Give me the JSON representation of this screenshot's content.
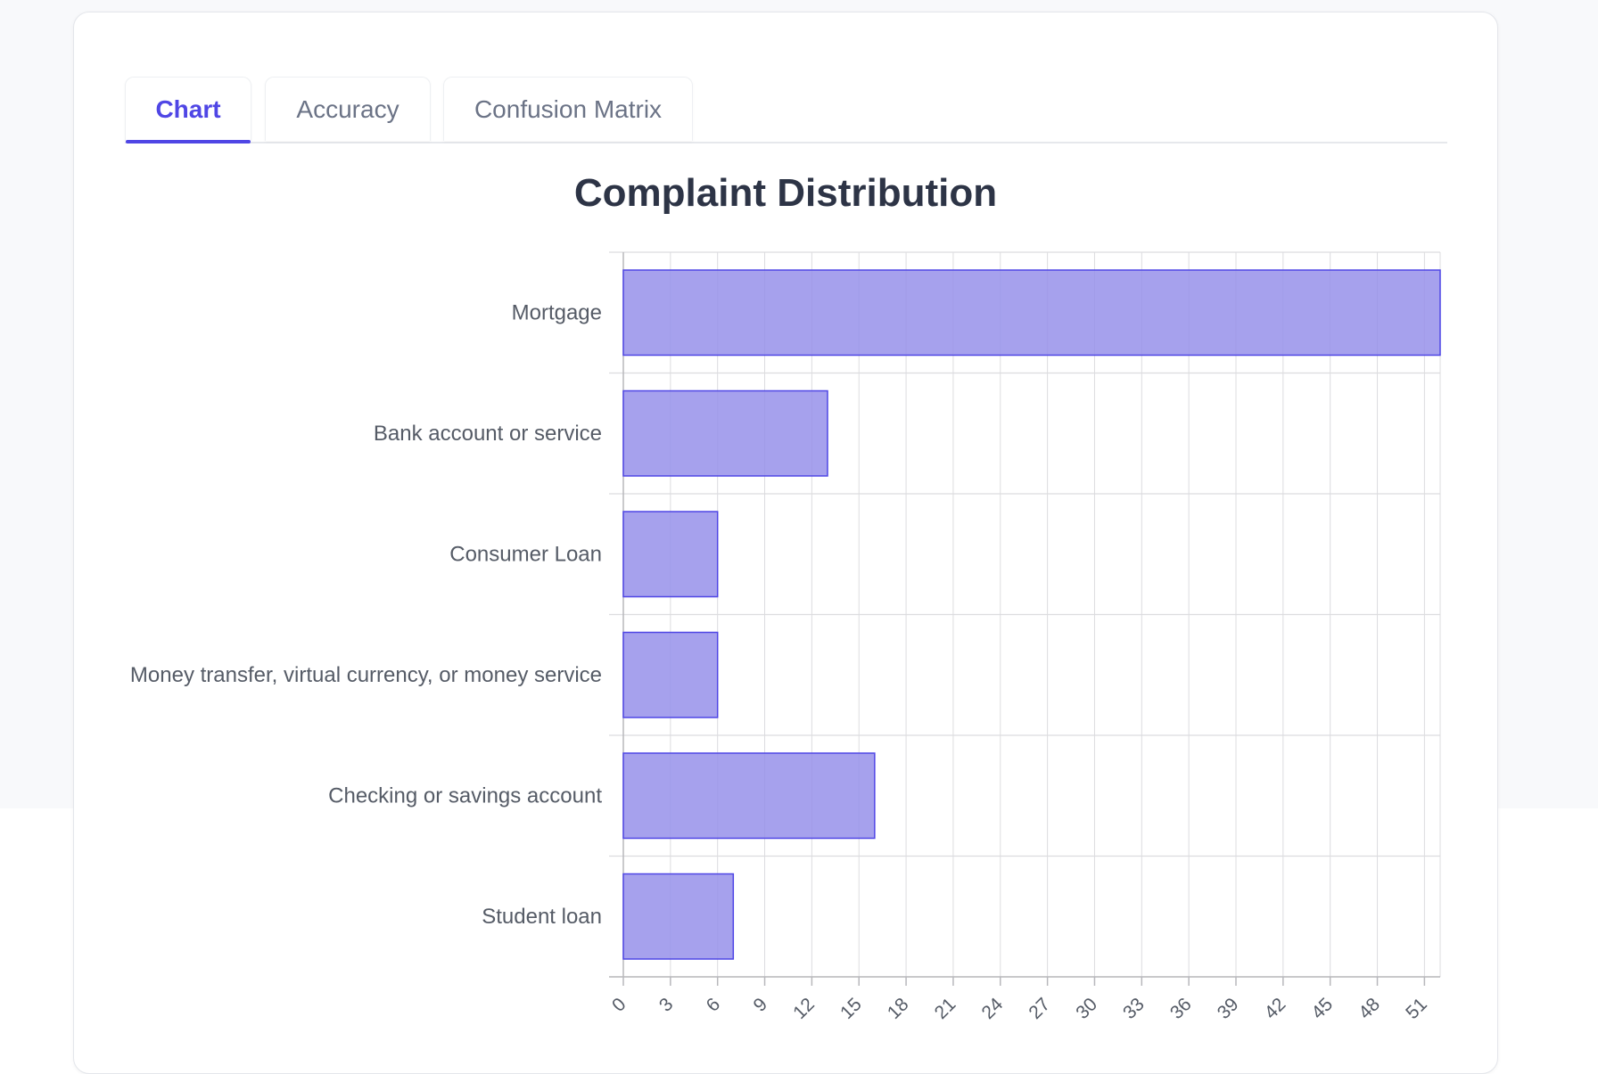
{
  "tabs": [
    {
      "label": "Chart",
      "active": true
    },
    {
      "label": "Accuracy",
      "active": false
    },
    {
      "label": "Confusion Matrix",
      "active": false
    }
  ],
  "colors": {
    "accent": "#4f46e5",
    "bar_fill": "#9690ea",
    "bar_stroke": "#4f46e5",
    "grid": "#dcdcdf",
    "label_text": "#555b66"
  },
  "chart_data": {
    "type": "bar",
    "orientation": "horizontal",
    "title": "Complaint Distribution",
    "xlabel": "",
    "ylabel": "",
    "categories": [
      "Mortgage",
      "Bank account or service",
      "Consumer Loan",
      "Money transfer, virtual currency, or money service",
      "Checking or savings account",
      "Student loan"
    ],
    "values": [
      52,
      13,
      6,
      6,
      16,
      7
    ],
    "xlim": [
      0,
      52
    ],
    "xticks": [
      0,
      3,
      6,
      9,
      12,
      15,
      18,
      21,
      24,
      27,
      30,
      33,
      36,
      39,
      42,
      45,
      48,
      51
    ],
    "grid": true,
    "legend": "none"
  }
}
